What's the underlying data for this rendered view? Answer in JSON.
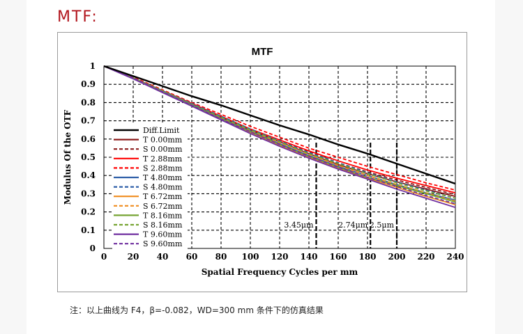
{
  "heading": "MTF:",
  "note": "注：以上曲线为 F4，β=-0.082，WD=300 mm 条件下的仿真结果",
  "chart_data": {
    "type": "line",
    "title": "MTF",
    "xlabel": "Spatial Frequency Cycles per mm",
    "ylabel": "Modulus Of the OTF",
    "xlim": [
      0,
      240
    ],
    "ylim": [
      0,
      1
    ],
    "xticks": [
      0,
      20,
      40,
      60,
      80,
      100,
      120,
      140,
      160,
      180,
      200,
      220,
      240
    ],
    "yticks": [
      0,
      0.1,
      0.2,
      0.3,
      0.4,
      0.5,
      0.6,
      0.7,
      0.8,
      0.9,
      1
    ],
    "grid": "dashed",
    "legend_position": "left",
    "x": [
      0,
      20,
      40,
      60,
      80,
      100,
      120,
      140,
      160,
      180,
      200,
      220,
      240
    ],
    "series": [
      {
        "name": "Diff.Limit",
        "color": "#000000",
        "dash": false,
        "values": [
          1.0,
          0.945,
          0.89,
          0.835,
          0.785,
          0.73,
          0.675,
          0.625,
          0.57,
          0.52,
          0.465,
          0.41,
          0.355
        ]
      },
      {
        "name": "T 0.00mm",
        "color": "#8b1a1a",
        "dash": false,
        "values": [
          1.0,
          0.935,
          0.865,
          0.795,
          0.72,
          0.65,
          0.585,
          0.52,
          0.46,
          0.41,
          0.365,
          0.325,
          0.285
        ]
      },
      {
        "name": "S 0.00mm",
        "color": "#8b1a1a",
        "dash": true,
        "values": [
          1.0,
          0.935,
          0.865,
          0.795,
          0.725,
          0.655,
          0.59,
          0.53,
          0.47,
          0.42,
          0.375,
          0.335,
          0.295
        ]
      },
      {
        "name": "T 2.88mm",
        "color": "#ff0000",
        "dash": false,
        "values": [
          1.0,
          0.935,
          0.865,
          0.795,
          0.725,
          0.655,
          0.595,
          0.535,
          0.48,
          0.43,
          0.385,
          0.345,
          0.305
        ]
      },
      {
        "name": "S 2.88mm",
        "color": "#ff0000",
        "dash": true,
        "values": [
          1.0,
          0.94,
          0.87,
          0.8,
          0.735,
          0.67,
          0.61,
          0.55,
          0.5,
          0.45,
          0.405,
          0.36,
          0.32
        ]
      },
      {
        "name": "T 4.80mm",
        "color": "#2e5fa8",
        "dash": false,
        "values": [
          1.0,
          0.935,
          0.865,
          0.79,
          0.715,
          0.645,
          0.575,
          0.51,
          0.45,
          0.4,
          0.35,
          0.305,
          0.265
        ]
      },
      {
        "name": "S 4.80mm",
        "color": "#2e5fa8",
        "dash": true,
        "values": [
          1.0,
          0.935,
          0.865,
          0.795,
          0.725,
          0.655,
          0.59,
          0.525,
          0.47,
          0.415,
          0.365,
          0.32,
          0.275
        ]
      },
      {
        "name": "T 6.72mm",
        "color": "#f08c1e",
        "dash": false,
        "values": [
          1.0,
          0.935,
          0.86,
          0.785,
          0.71,
          0.635,
          0.565,
          0.5,
          0.44,
          0.385,
          0.335,
          0.285,
          0.24
        ]
      },
      {
        "name": "S 6.72mm",
        "color": "#f08c1e",
        "dash": true,
        "values": [
          1.0,
          0.935,
          0.865,
          0.79,
          0.715,
          0.645,
          0.58,
          0.515,
          0.455,
          0.4,
          0.35,
          0.305,
          0.26
        ]
      },
      {
        "name": "T 8.16mm",
        "color": "#76a432",
        "dash": false,
        "values": [
          1.0,
          0.935,
          0.86,
          0.785,
          0.71,
          0.64,
          0.57,
          0.505,
          0.445,
          0.39,
          0.345,
          0.3,
          0.255
        ]
      },
      {
        "name": "S 8.16mm",
        "color": "#76a432",
        "dash": true,
        "values": [
          1.0,
          0.935,
          0.865,
          0.79,
          0.72,
          0.65,
          0.585,
          0.52,
          0.465,
          0.41,
          0.36,
          0.315,
          0.275
        ]
      },
      {
        "name": "T 9.60mm",
        "color": "#7030a0",
        "dash": false,
        "values": [
          1.0,
          0.93,
          0.855,
          0.78,
          0.705,
          0.63,
          0.56,
          0.495,
          0.435,
          0.38,
          0.325,
          0.275,
          0.225
        ]
      },
      {
        "name": "S 9.60mm",
        "color": "#7030a0",
        "dash": true,
        "values": [
          1.0,
          0.935,
          0.86,
          0.785,
          0.71,
          0.64,
          0.57,
          0.505,
          0.445,
          0.39,
          0.34,
          0.29,
          0.245
        ]
      }
    ],
    "markers": [
      {
        "x": 145,
        "label": "3.45μm"
      },
      {
        "x": 182,
        "label": "2.74μm"
      },
      {
        "x": 200,
        "label": "2.5μm"
      }
    ],
    "marker_label_y": 0.13
  }
}
